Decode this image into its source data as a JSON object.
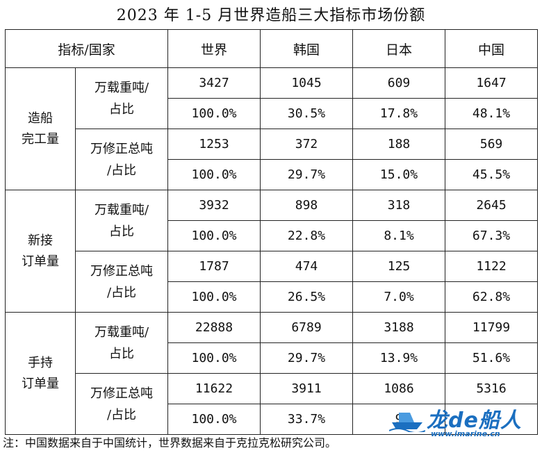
{
  "title": "2023 年 1-5 月世界造船三大指标市场份额",
  "table": {
    "header": [
      "指标/国家",
      "世界",
      "韩国",
      "日本",
      "中国"
    ],
    "groups": [
      {
        "category": [
          "造船",
          "完工量"
        ],
        "sub": [
          {
            "label": [
              "万载重吨/",
              "占比"
            ],
            "values": [
              "3427",
              "1045",
              "609",
              "1647"
            ],
            "shares": [
              "100.0%",
              "30.5%",
              "17.8%",
              "48.1%"
            ]
          },
          {
            "label": [
              "万修正总吨",
              "/占比"
            ],
            "values": [
              "1253",
              "372",
              "188",
              "569"
            ],
            "shares": [
              "100.0%",
              "29.7%",
              "15.0%",
              "45.5%"
            ]
          }
        ]
      },
      {
        "category": [
          "新接",
          "订单量"
        ],
        "sub": [
          {
            "label": [
              "万载重吨/",
              "占比"
            ],
            "values": [
              "3932",
              "898",
              "318",
              "2645"
            ],
            "shares": [
              "100.0%",
              "22.8%",
              "8.1%",
              "67.3%"
            ]
          },
          {
            "label": [
              "万修正总吨",
              "/占比"
            ],
            "values": [
              "1787",
              "474",
              "125",
              "1122"
            ],
            "shares": [
              "100.0%",
              "26.5%",
              "7.0%",
              "62.8%"
            ]
          }
        ]
      },
      {
        "category": [
          "手持",
          "订单量"
        ],
        "sub": [
          {
            "label": [
              "万载重吨/",
              "占比"
            ],
            "values": [
              "22888",
              "6789",
              "3188",
              "11799"
            ],
            "shares": [
              "100.0%",
              "29.7%",
              "13.9%",
              "51.6%"
            ]
          },
          {
            "label": [
              "万修正总吨",
              "/占比"
            ],
            "values": [
              "11622",
              "3911",
              "1086",
              "5316"
            ],
            "shares": [
              "100.0%",
              "33.7%",
              "9",
              ""
            ]
          }
        ]
      }
    ]
  },
  "note": "注：中国数据来自于中国统计，世界数据来自于克拉克松研究公司。",
  "watermark": {
    "name": "龙de船人",
    "url": "www.imarine.cn",
    "icon": "ship-logo-icon",
    "color": "#1b6fc0"
  }
}
